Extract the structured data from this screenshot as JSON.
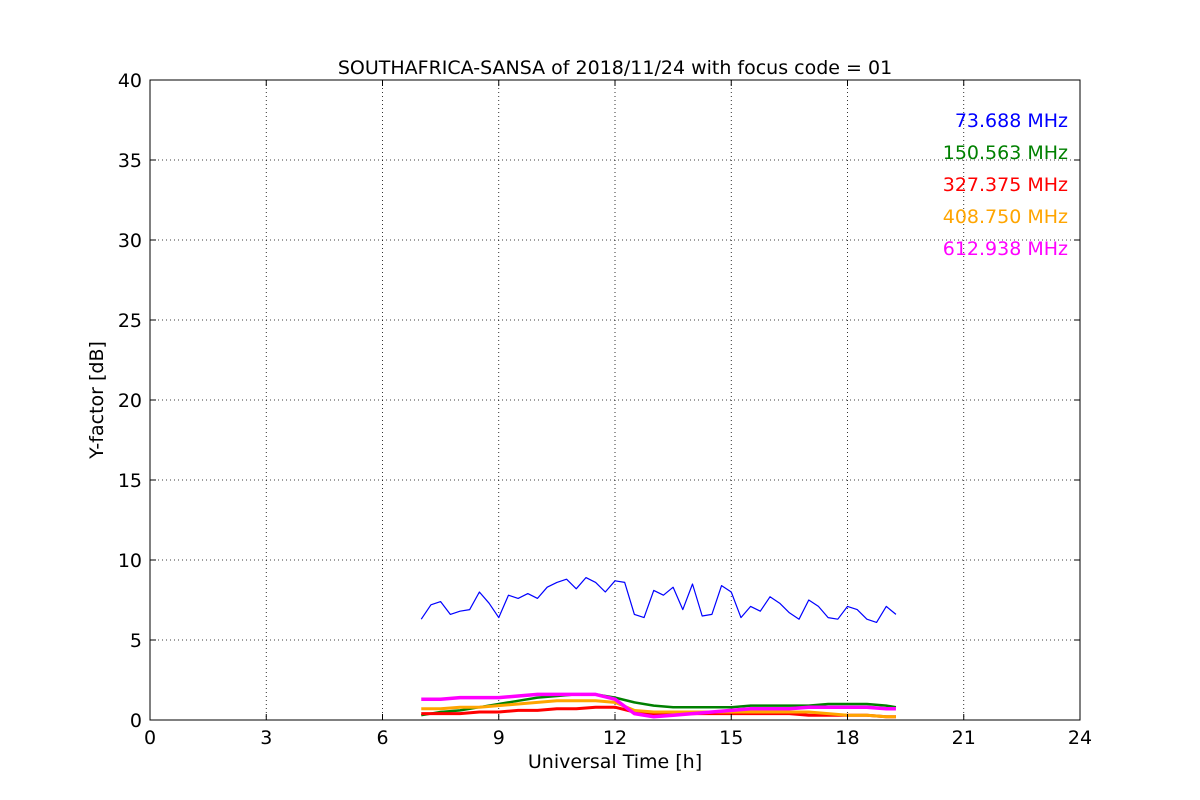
{
  "chart_data": {
    "type": "line",
    "title": "SOUTHAFRICA-SANSA of 2018/11/24 with focus code = 01",
    "xlabel": "Universal Time [h]",
    "ylabel": "Y-factor [dB]",
    "xlim": [
      0,
      24
    ],
    "ylim": [
      0,
      40
    ],
    "xticks": [
      0,
      3,
      6,
      9,
      12,
      15,
      18,
      21,
      24
    ],
    "yticks": [
      0,
      5,
      10,
      15,
      20,
      25,
      30,
      35,
      40
    ],
    "grid": true,
    "legend_position": "top-right",
    "series": [
      {
        "name": "73.688 MHz",
        "color": "#0000ff",
        "x": [
          7.0,
          7.25,
          7.5,
          7.75,
          8.0,
          8.25,
          8.5,
          8.75,
          9.0,
          9.25,
          9.5,
          9.75,
          10.0,
          10.25,
          10.5,
          10.75,
          11.0,
          11.25,
          11.5,
          11.75,
          12.0,
          12.25,
          12.5,
          12.75,
          13.0,
          13.25,
          13.5,
          13.75,
          14.0,
          14.25,
          14.5,
          14.75,
          15.0,
          15.25,
          15.5,
          15.75,
          16.0,
          16.25,
          16.5,
          16.75,
          17.0,
          17.25,
          17.5,
          17.75,
          18.0,
          18.25,
          18.5,
          18.75,
          19.0,
          19.25
        ],
        "y": [
          6.3,
          7.2,
          7.4,
          6.6,
          6.8,
          6.9,
          8.0,
          7.3,
          6.4,
          7.8,
          7.6,
          7.9,
          7.6,
          8.3,
          8.6,
          8.8,
          8.2,
          8.9,
          8.6,
          8.0,
          8.7,
          8.6,
          6.6,
          6.4,
          8.1,
          7.8,
          8.3,
          6.9,
          8.5,
          6.5,
          6.6,
          8.4,
          8.0,
          6.4,
          7.1,
          6.8,
          7.7,
          7.3,
          6.7,
          6.3,
          7.5,
          7.1,
          6.4,
          6.3,
          7.1,
          6.9,
          6.3,
          6.1,
          7.1,
          6.6
        ]
      },
      {
        "name": "150.563 MHz",
        "color": "#008000",
        "x": [
          7.0,
          7.5,
          8.0,
          8.5,
          9.0,
          9.5,
          10.0,
          10.5,
          11.0,
          11.5,
          12.0,
          12.5,
          13.0,
          13.5,
          14.0,
          14.5,
          15.0,
          15.5,
          16.0,
          16.5,
          17.0,
          17.5,
          18.0,
          18.5,
          19.0,
          19.25
        ],
        "y": [
          0.3,
          0.5,
          0.6,
          0.8,
          1.0,
          1.2,
          1.4,
          1.5,
          1.6,
          1.6,
          1.4,
          1.1,
          0.9,
          0.8,
          0.8,
          0.8,
          0.8,
          0.9,
          0.9,
          0.9,
          0.9,
          1.0,
          1.0,
          1.0,
          0.9,
          0.8
        ]
      },
      {
        "name": "327.375 MHz",
        "color": "#ff0000",
        "x": [
          7.0,
          7.5,
          8.0,
          8.5,
          9.0,
          9.5,
          10.0,
          10.5,
          11.0,
          11.5,
          12.0,
          12.5,
          13.0,
          13.5,
          14.0,
          14.5,
          15.0,
          15.5,
          16.0,
          16.5,
          17.0,
          17.5,
          18.0,
          18.5,
          19.0,
          19.25
        ],
        "y": [
          0.4,
          0.4,
          0.4,
          0.5,
          0.5,
          0.6,
          0.6,
          0.7,
          0.7,
          0.8,
          0.8,
          0.5,
          0.4,
          0.4,
          0.4,
          0.4,
          0.4,
          0.4,
          0.4,
          0.4,
          0.3,
          0.3,
          0.3,
          0.3,
          0.2,
          0.2
        ]
      },
      {
        "name": "408.750 MHz",
        "color": "#ffa500",
        "x": [
          7.0,
          7.5,
          8.0,
          8.5,
          9.0,
          9.5,
          10.0,
          10.5,
          11.0,
          11.5,
          12.0,
          12.5,
          13.0,
          13.5,
          14.0,
          14.5,
          15.0,
          15.5,
          16.0,
          16.5,
          17.0,
          17.5,
          18.0,
          18.5,
          19.0,
          19.25
        ],
        "y": [
          0.7,
          0.7,
          0.8,
          0.8,
          0.9,
          1.0,
          1.1,
          1.2,
          1.2,
          1.2,
          1.1,
          0.6,
          0.5,
          0.5,
          0.5,
          0.5,
          0.5,
          0.5,
          0.5,
          0.5,
          0.5,
          0.4,
          0.3,
          0.3,
          0.2,
          0.2
        ]
      },
      {
        "name": "612.938 MHz",
        "color": "#ff00ff",
        "x": [
          7.0,
          7.5,
          8.0,
          8.5,
          9.0,
          9.5,
          10.0,
          10.5,
          11.0,
          11.5,
          12.0,
          12.5,
          13.0,
          13.5,
          14.0,
          14.5,
          15.0,
          15.5,
          16.0,
          16.5,
          17.0,
          17.5,
          18.0,
          18.5,
          19.0,
          19.25
        ],
        "y": [
          1.3,
          1.3,
          1.4,
          1.4,
          1.4,
          1.5,
          1.6,
          1.6,
          1.6,
          1.6,
          1.3,
          0.4,
          0.2,
          0.3,
          0.4,
          0.5,
          0.6,
          0.7,
          0.7,
          0.7,
          0.8,
          0.8,
          0.8,
          0.8,
          0.7,
          0.7
        ]
      }
    ]
  }
}
